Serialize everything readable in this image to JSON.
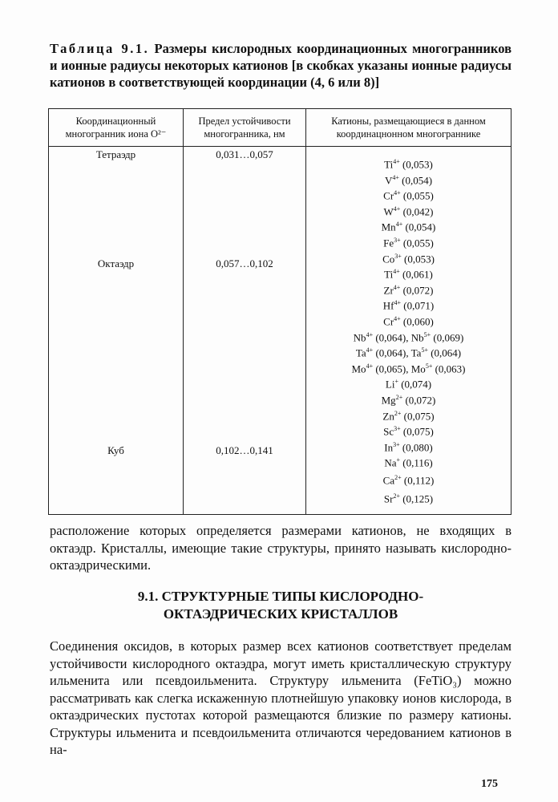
{
  "caption": {
    "label": "Таблица 9.1.",
    "text": "Размеры кислородных координационных многогранников и ионные радиусы некоторых катионов [в скобках указаны ионные радиусы катионов в соответствующей координации (4, 6 или 8)]"
  },
  "table": {
    "headers": [
      "Координационный многогранник иона O²⁻",
      "Предел устойчивости многогранника, нм",
      "Катионы, размещающиеся в данном координацнонном многограннике"
    ],
    "polyhedra": [
      {
        "name": "Тетраэдр",
        "range": "0,031…0,057"
      },
      {
        "name": "Октаэдр",
        "range": "0,057…0,102"
      },
      {
        "name": "Куб",
        "range": "0,102…0,141"
      }
    ],
    "cations": [
      [
        {
          "el": "Ti",
          "ch": "4+",
          "r": "(0,053)"
        }
      ],
      [
        {
          "el": "V",
          "ch": "4+",
          "r": "(0,054)"
        }
      ],
      [
        {
          "el": "Cr",
          "ch": "4+",
          "r": "(0,055)"
        }
      ],
      [
        {
          "el": "W",
          "ch": "4+",
          "r": "(0,042)"
        }
      ],
      [
        {
          "el": "Mn",
          "ch": "4+",
          "r": "(0,054)"
        }
      ],
      [
        {
          "el": "Fe",
          "ch": "3+",
          "r": "(0,055)"
        }
      ],
      [
        {
          "el": "Co",
          "ch": "3+",
          "r": "(0,053)"
        }
      ],
      [
        {
          "el": "Ti",
          "ch": "4+",
          "r": "(0,061)"
        }
      ],
      [
        {
          "el": "Zr",
          "ch": "4+",
          "r": "(0,072)"
        }
      ],
      [
        {
          "el": "Hf",
          "ch": "4+",
          "r": "(0,071)"
        }
      ],
      [
        {
          "el": "Cr",
          "ch": "4+",
          "r": "(0,060)"
        }
      ],
      [
        {
          "el": "Nb",
          "ch": "4+",
          "r": "(0,064),"
        },
        {
          "el": "Nb",
          "ch": "5+",
          "r": "(0,069)"
        }
      ],
      [
        {
          "el": "Ta",
          "ch": "4+",
          "r": "(0,064),"
        },
        {
          "el": "Ta",
          "ch": "5+",
          "r": "(0,064)"
        }
      ],
      [
        {
          "el": "Mo",
          "ch": "4+",
          "r": "(0,065),"
        },
        {
          "el": "Mo",
          "ch": "5+",
          "r": "(0,063)"
        }
      ],
      [
        {
          "el": "Li",
          "ch": "+",
          "r": "(0,074)"
        }
      ],
      [
        {
          "el": "Mg",
          "ch": "2+",
          "r": "(0,072)"
        }
      ],
      [
        {
          "el": "Zn",
          "ch": "2+",
          "r": "(0,075)"
        }
      ],
      [
        {
          "el": "Sc",
          "ch": "3+",
          "r": "(0,075)"
        }
      ],
      [
        {
          "el": "In",
          "ch": "3+",
          "r": "(0,080)"
        }
      ],
      [
        {
          "el": "Na",
          "ch": "+",
          "r": "(0,116)"
        }
      ],
      [
        {
          "el": "Ca",
          "ch": "2+",
          "r": "(0,112)"
        }
      ],
      [
        {
          "el": "Sr",
          "ch": "2+",
          "r": "(0,125)"
        }
      ]
    ]
  },
  "paragraph1": "расположение которых определяется размерами катионов, не входящих в октаэдр. Кристаллы, имеющие такие структуры, принято называть кислородно-октаэдрическими.",
  "heading": "9.1. СТРУКТУРНЫЕ ТИПЫ КИСЛОРОДНО-ОКТАЭДРИЧЕСКИХ КРИСТАЛЛОВ",
  "paragraph2": "Соединения оксидов, в которых размер всех катионов соответствует пределам устойчивости кислородного октаэдра, могут иметь кристаллическую структуру ильменита или псевдоильменита. Структуру ильменита (FeTiO₃) можно рассматривать как слегка искаженную плотнейшую упаковку ионов кислорода, в октаэдрических пустотах которой размещаются близкие по размеру катионы. Структуры ильменита и псевдоильменита отличаются чередованием катионов в на-",
  "page_number": "175"
}
